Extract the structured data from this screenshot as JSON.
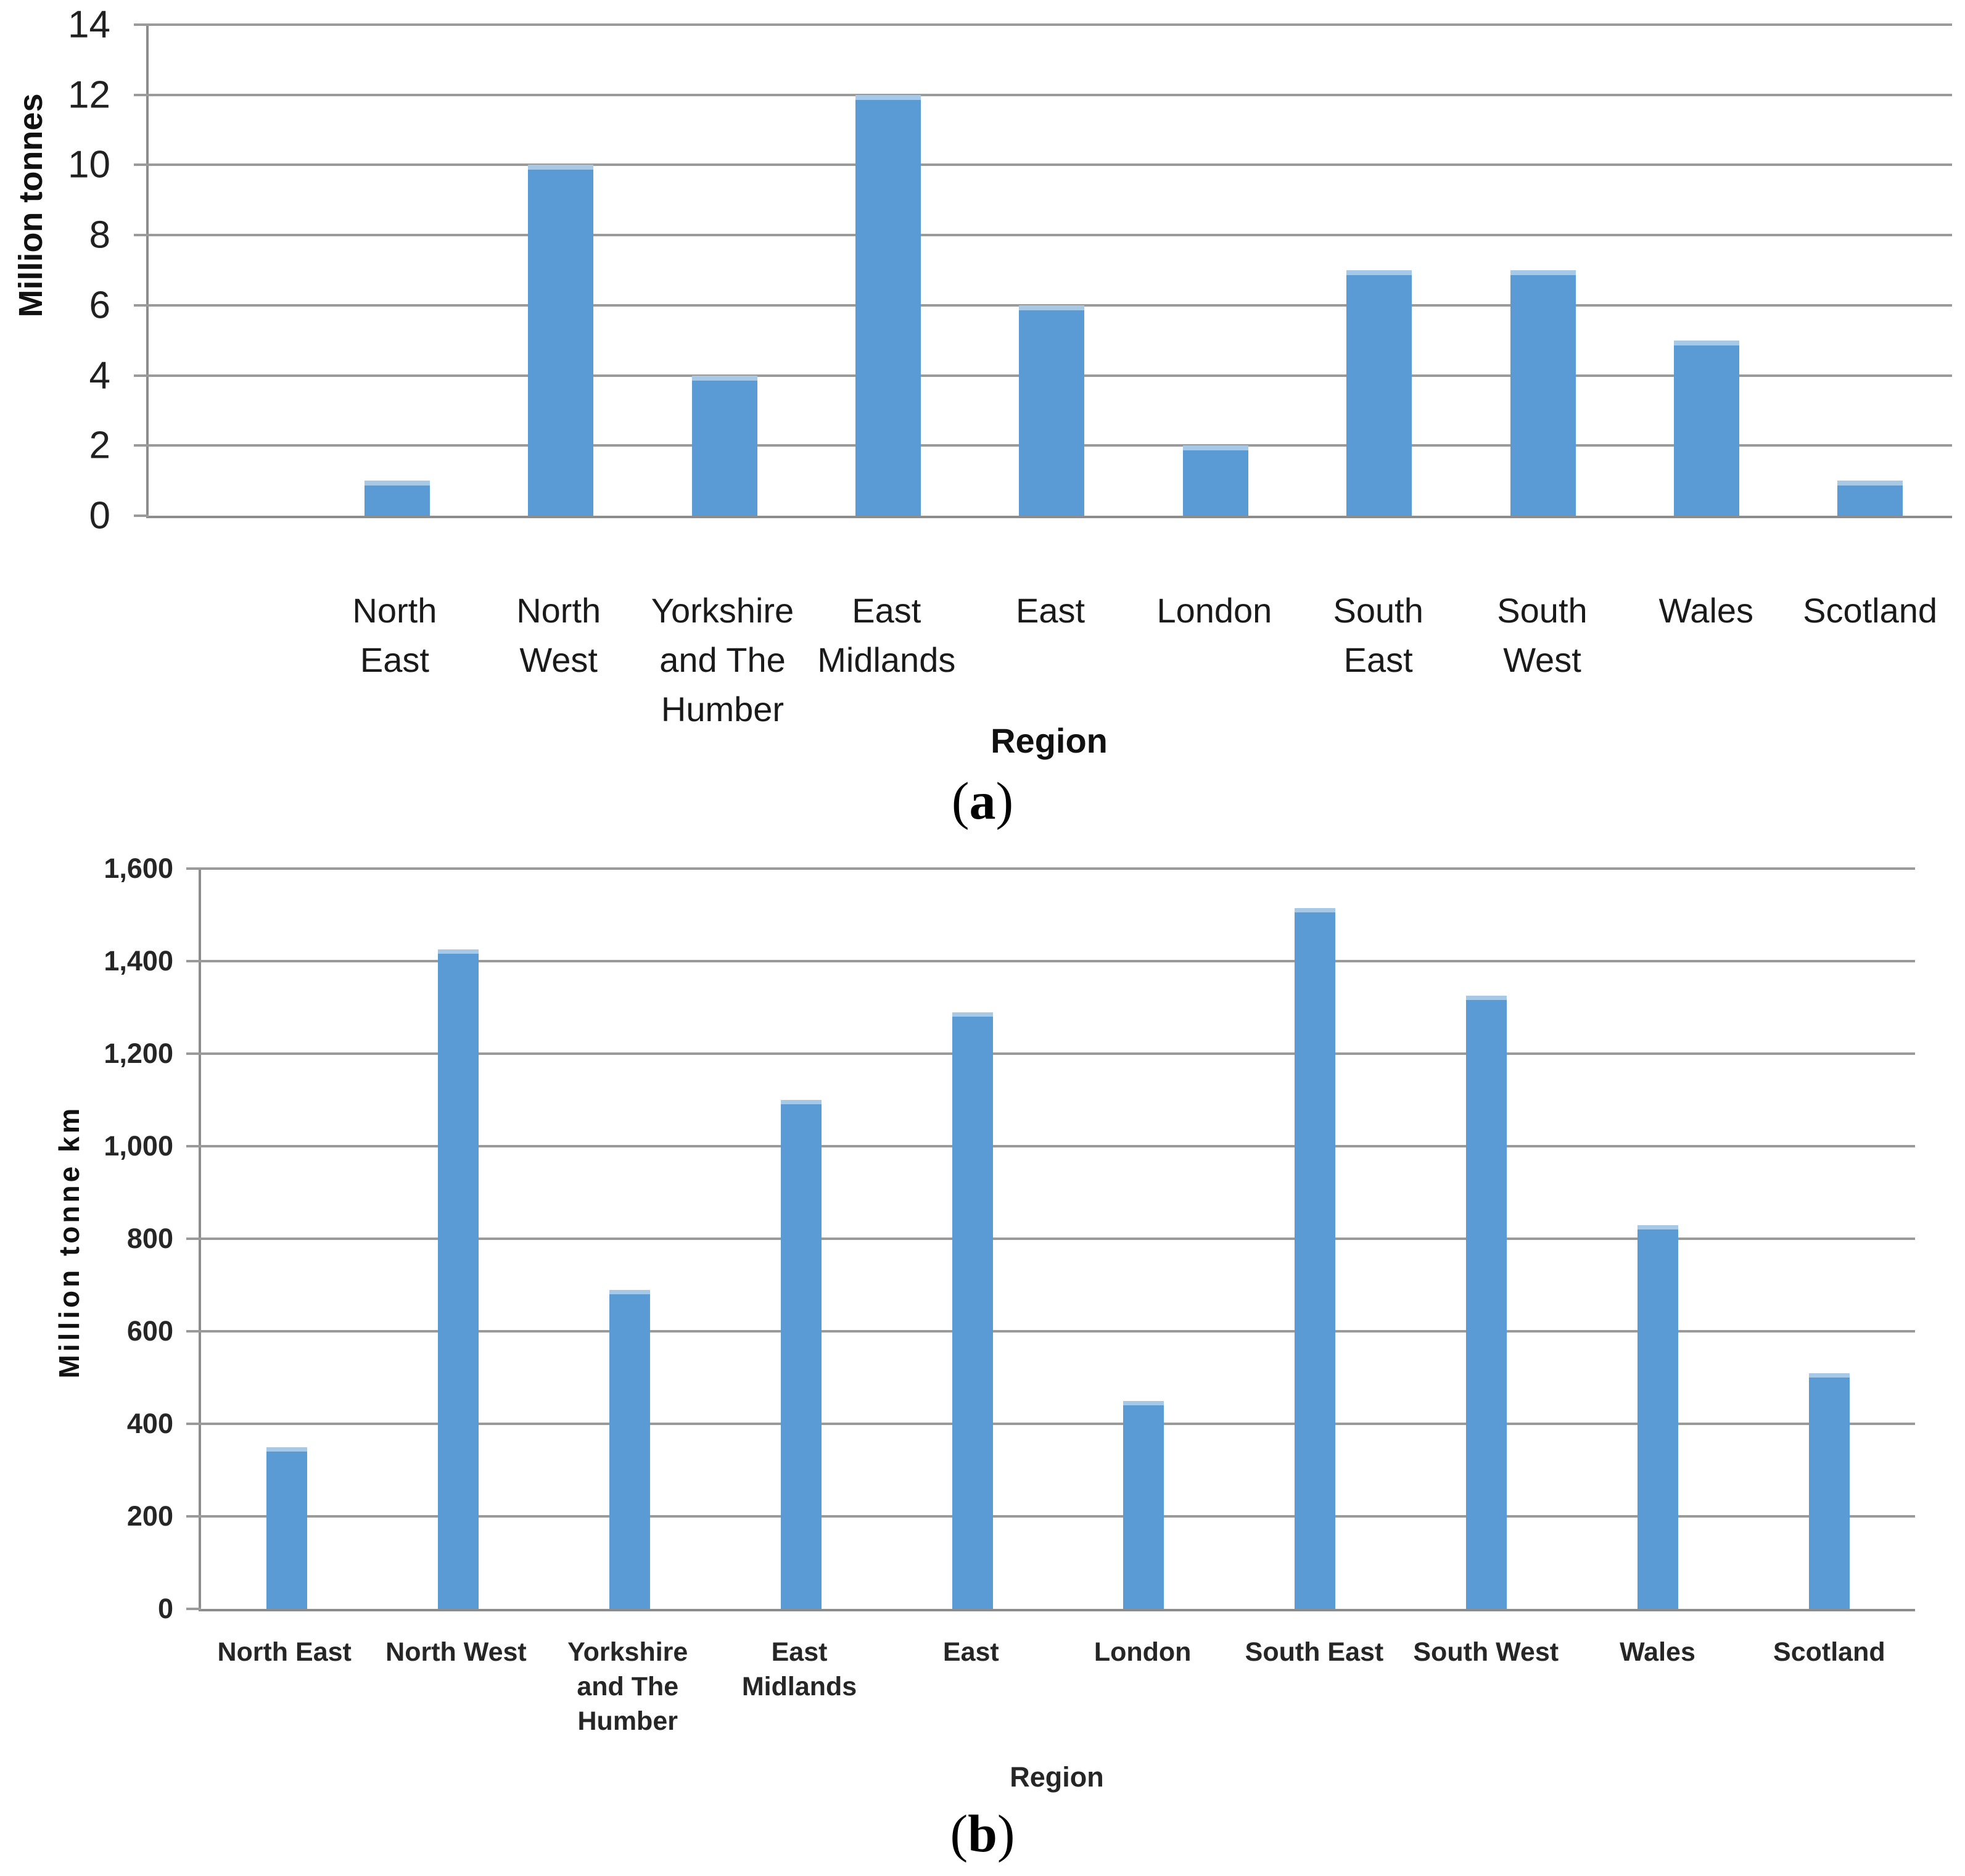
{
  "styles": {
    "bar_color": "#5B9BD5",
    "bar_cap_color": "#A6C9E8",
    "grid_color": "#9A9A9A",
    "axis_color": "#8C8C8C"
  },
  "chart_data": [
    {
      "type": "bar",
      "panel": "a",
      "caption_pre": "(",
      "caption_letter": "a",
      "caption_post": ")",
      "xlabel": "Region",
      "ylabel": "Million tonnes",
      "ylim": [
        0,
        14
      ],
      "ytick_step": 2,
      "ytick_labels": [
        "0",
        "2",
        "4",
        "6",
        "8",
        "10",
        "12",
        "14"
      ],
      "grid": "horizontal",
      "legend": "none",
      "categories": [
        "North East",
        "North West",
        "Yorkshire and The Humber",
        "East Midlands",
        "East",
        "London",
        "South East",
        "South West",
        "Wales",
        "Scotland"
      ],
      "category_lines": [
        [
          "North",
          "East"
        ],
        [
          "North",
          "West"
        ],
        [
          "Yorkshire",
          "and The",
          "Humber"
        ],
        [
          "East",
          "Midlands"
        ],
        [
          "East"
        ],
        [
          "London"
        ],
        [
          "South",
          "East"
        ],
        [
          "South",
          "West"
        ],
        [
          "Wales"
        ],
        [
          "Scotland"
        ]
      ],
      "values": [
        1,
        10,
        4,
        12,
        6,
        2,
        7,
        7,
        5,
        1
      ]
    },
    {
      "type": "bar",
      "panel": "b",
      "caption_pre": "(",
      "caption_letter": "b",
      "caption_post": ")",
      "xlabel": "Region",
      "ylabel": "Million tonne km",
      "ylim": [
        0,
        1600
      ],
      "ytick_step": 200,
      "ytick_labels": [
        "0",
        "200",
        "400",
        "600",
        "800",
        "1,000",
        "1,200",
        "1,400",
        "1,600"
      ],
      "grid": "horizontal",
      "legend": "none",
      "categories": [
        "North East",
        "North West",
        "Yorkshire and The Humber",
        "East Midlands",
        "East",
        "London",
        "South East",
        "South West",
        "Wales",
        "Scotland"
      ],
      "category_lines": [
        [
          "North East"
        ],
        [
          "North West"
        ],
        [
          "Yorkshire",
          "and The",
          "Humber"
        ],
        [
          "East",
          "Midlands"
        ],
        [
          "East"
        ],
        [
          "London"
        ],
        [
          "South East"
        ],
        [
          "South West"
        ],
        [
          "Wales"
        ],
        [
          "Scotland"
        ]
      ],
      "values": [
        350,
        1425,
        690,
        1100,
        1290,
        450,
        1515,
        1325,
        830,
        510
      ]
    }
  ]
}
